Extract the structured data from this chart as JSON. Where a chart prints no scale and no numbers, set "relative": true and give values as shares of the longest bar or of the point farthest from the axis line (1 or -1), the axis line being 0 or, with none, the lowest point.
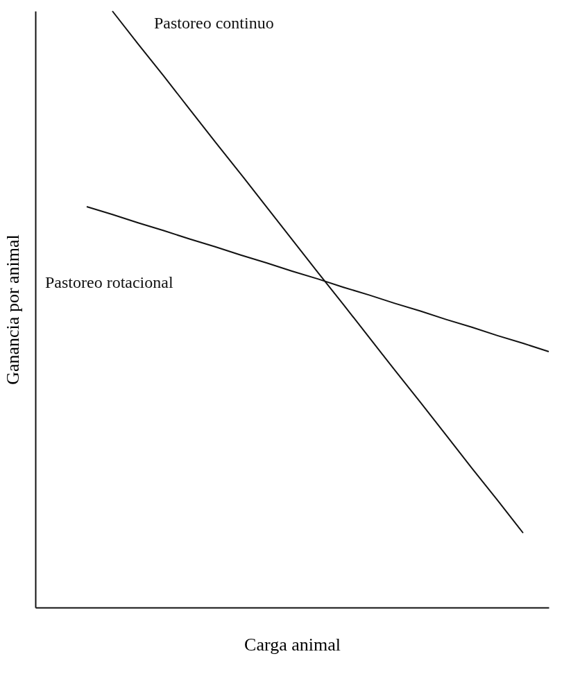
{
  "chart_data": {
    "type": "line",
    "relative": true,
    "xlabel": "Carga animal",
    "ylabel": "Ganancia por animal",
    "categories": [
      null,
      null,
      null,
      null,
      null,
      null,
      null,
      null,
      null,
      null,
      null,
      null,
      null,
      null,
      null,
      null,
      null,
      null,
      null,
      null,
      null
    ],
    "series": [
      {
        "name": "Pastoreo continuo",
        "color": "#111111",
        "values": [
          null,
          null,
          null,
          1.0,
          0.945,
          0.891,
          0.836,
          0.781,
          0.727,
          0.672,
          0.617,
          0.562,
          0.508,
          0.453,
          0.398,
          0.344,
          0.289,
          0.234,
          0.18,
          0.125,
          null
        ]
      },
      {
        "name": "Pastoreo rotacional",
        "color": "#111111",
        "values": [
          null,
          null,
          0.672,
          0.659,
          0.645,
          0.632,
          0.618,
          0.605,
          0.591,
          0.578,
          0.564,
          0.551,
          0.537,
          0.524,
          0.51,
          0.497,
          0.483,
          0.47,
          0.456,
          0.443,
          0.429
        ]
      }
    ],
    "legend": false,
    "grid": false,
    "marker": "none",
    "line_style": "solid",
    "tick_labels": false
  }
}
